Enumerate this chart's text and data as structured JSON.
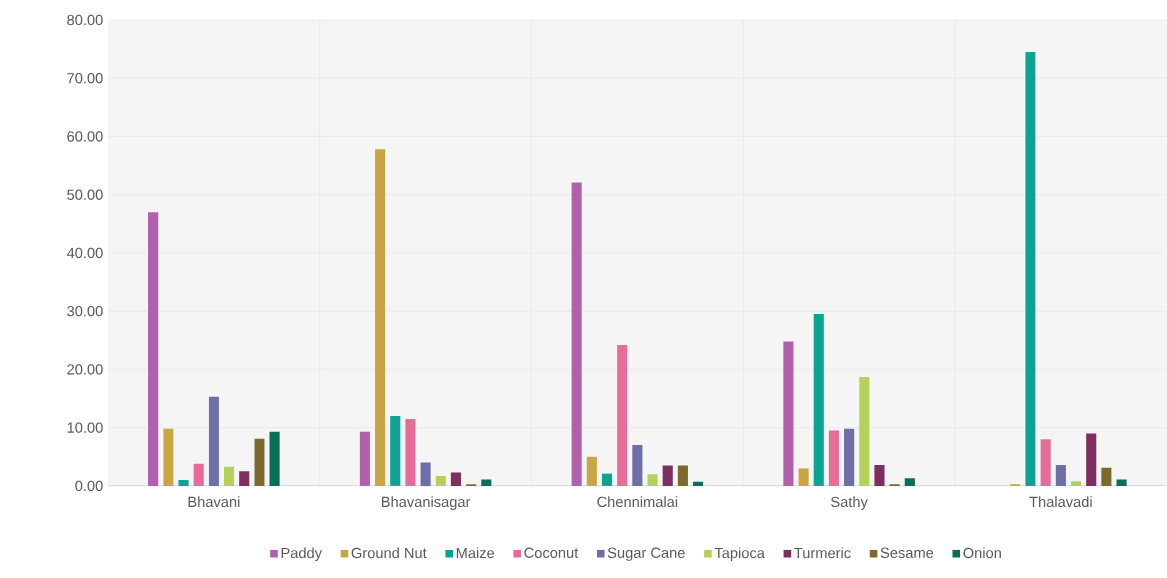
{
  "chart_data": {
    "type": "bar",
    "categories": [
      "Bhavani",
      "Bhavanisagar",
      "Chennimalai",
      "Sathy",
      "Thalavadi"
    ],
    "series": [
      {
        "name": "Paddy",
        "color": "#b25fac",
        "values": [
          47.0,
          9.3,
          52.1,
          24.8,
          0
        ]
      },
      {
        "name": "Ground Nut",
        "color": "#c9a543",
        "values": [
          9.8,
          57.8,
          5.0,
          3.0,
          0.3
        ]
      },
      {
        "name": "Maize",
        "color": "#0ea390",
        "values": [
          1.0,
          12.0,
          2.1,
          29.5,
          74.5
        ]
      },
      {
        "name": "Coconut",
        "color": "#e86c99",
        "values": [
          3.8,
          11.5,
          24.2,
          9.5,
          8.0
        ]
      },
      {
        "name": "Sugar Cane",
        "color": "#6c6fa8",
        "values": [
          15.3,
          4.0,
          7.0,
          9.8,
          3.6
        ]
      },
      {
        "name": "Tapioca",
        "color": "#b4d25a",
        "values": [
          3.3,
          1.7,
          2.0,
          18.7,
          0.8
        ]
      },
      {
        "name": "Turmeric",
        "color": "#7e2f5f",
        "values": [
          2.5,
          2.3,
          3.5,
          3.6,
          9.0
        ]
      },
      {
        "name": "Sesame",
        "color": "#7a6a2d",
        "values": [
          8.1,
          0.3,
          3.5,
          0.3,
          3.1
        ]
      },
      {
        "name": "Onion",
        "color": "#0a6e58",
        "values": [
          9.3,
          1.1,
          0.7,
          1.3,
          1.1
        ]
      }
    ],
    "ylim": [
      0,
      80
    ],
    "yticks": [
      {
        "value": 0,
        "label": "0.00"
      },
      {
        "value": 10,
        "label": "10.00"
      },
      {
        "value": 20,
        "label": "20.00"
      },
      {
        "value": 30,
        "label": "30.00"
      },
      {
        "value": 40,
        "label": "40.00"
      },
      {
        "value": 50,
        "label": "50.00"
      },
      {
        "value": 60,
        "label": "60.00"
      },
      {
        "value": 70,
        "label": "70.00"
      },
      {
        "value": 80,
        "label": "80.00"
      }
    ],
    "grid": true,
    "legend": "bottom"
  }
}
